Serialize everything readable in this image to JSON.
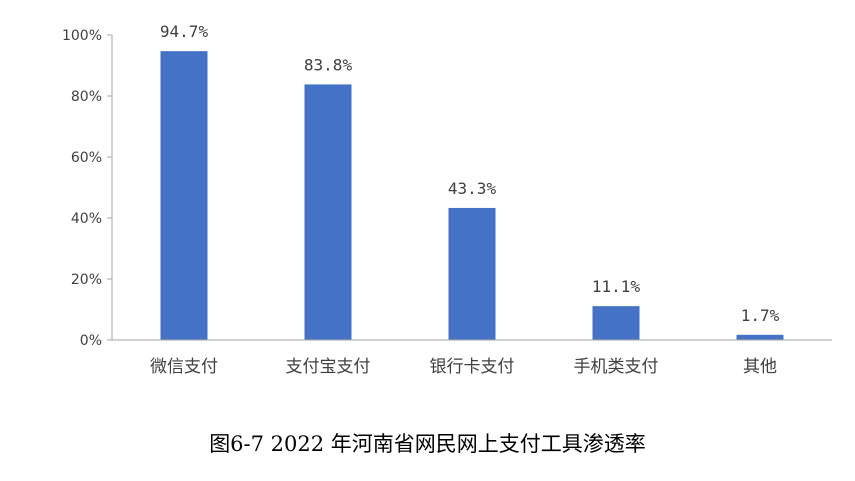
{
  "chart_data": {
    "type": "bar",
    "categories": [
      "微信支付",
      "支付宝支付",
      "银行卡支付",
      "手机类支付",
      "其他"
    ],
    "values": [
      94.7,
      83.8,
      43.3,
      11.1,
      1.7
    ],
    "data_labels": [
      "94.7%",
      "83.8%",
      "43.3%",
      "11.1%",
      "1.7%"
    ],
    "yticks": [
      "0%",
      "20%",
      "40%",
      "60%",
      "80%",
      "100%"
    ],
    "ylim": [
      0,
      100
    ],
    "grid": false,
    "bar_color": "#4472C4",
    "axis_color": "#A6A6A6",
    "title": "",
    "xlabel": "",
    "ylabel": ""
  },
  "caption": "图6-7 2022 年河南省网民网上支付工具渗透率"
}
